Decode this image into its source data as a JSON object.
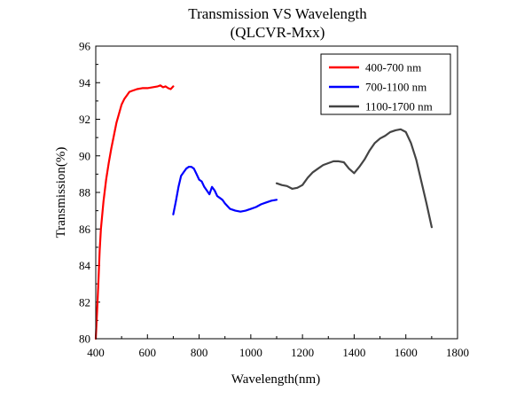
{
  "chart_data": {
    "type": "line",
    "title": "Transmission VS Wavelength",
    "subtitle": "(QLCVR-Mxx)",
    "xlabel": "Wavelength(nm)",
    "ylabel": "Transmission(%)",
    "xlim": [
      400,
      1800
    ],
    "ylim": [
      80,
      96
    ],
    "xticks": [
      400,
      600,
      800,
      1000,
      1200,
      1400,
      1600,
      1800
    ],
    "yticks": [
      80,
      82,
      84,
      86,
      88,
      90,
      92,
      94,
      96
    ],
    "grid": false,
    "legend_position": "top-right",
    "series": [
      {
        "name": "400-700 nm",
        "color": "#ff0000",
        "x": [
          400,
          405,
          410,
          415,
          420,
          430,
          440,
          450,
          460,
          470,
          480,
          490,
          500,
          510,
          520,
          530,
          540,
          550,
          560,
          580,
          600,
          620,
          640,
          650,
          660,
          670,
          680,
          690,
          700
        ],
        "y": [
          80.0,
          81.5,
          83.0,
          84.8,
          86.0,
          87.5,
          88.7,
          89.6,
          90.4,
          91.1,
          91.8,
          92.3,
          92.8,
          93.1,
          93.3,
          93.5,
          93.55,
          93.6,
          93.65,
          93.7,
          93.7,
          93.75,
          93.8,
          93.85,
          93.75,
          93.8,
          93.7,
          93.65,
          93.8
        ]
      },
      {
        "name": "700-1100 nm",
        "color": "#0000ff",
        "x": [
          700,
          710,
          720,
          730,
          740,
          750,
          760,
          770,
          780,
          790,
          800,
          810,
          820,
          830,
          840,
          850,
          860,
          870,
          880,
          890,
          900,
          920,
          940,
          960,
          980,
          1000,
          1020,
          1040,
          1060,
          1080,
          1100
        ],
        "y": [
          86.8,
          87.5,
          88.3,
          88.9,
          89.1,
          89.3,
          89.4,
          89.4,
          89.3,
          89.0,
          88.7,
          88.6,
          88.3,
          88.1,
          87.9,
          88.3,
          88.1,
          87.8,
          87.7,
          87.6,
          87.4,
          87.1,
          87.0,
          86.95,
          87.0,
          87.1,
          87.2,
          87.35,
          87.45,
          87.55,
          87.6
        ]
      },
      {
        "name": "1100-1700 nm",
        "color": "#444444",
        "x": [
          1100,
          1120,
          1140,
          1160,
          1180,
          1200,
          1220,
          1240,
          1260,
          1280,
          1300,
          1320,
          1340,
          1360,
          1380,
          1400,
          1420,
          1440,
          1460,
          1480,
          1500,
          1520,
          1540,
          1560,
          1580,
          1600,
          1620,
          1640,
          1660,
          1680,
          1700
        ],
        "y": [
          88.5,
          88.4,
          88.35,
          88.2,
          88.25,
          88.4,
          88.8,
          89.1,
          89.3,
          89.5,
          89.6,
          89.7,
          89.7,
          89.65,
          89.3,
          89.05,
          89.4,
          89.8,
          90.3,
          90.7,
          90.95,
          91.1,
          91.3,
          91.4,
          91.45,
          91.3,
          90.7,
          89.8,
          88.6,
          87.4,
          86.1
        ]
      }
    ]
  }
}
